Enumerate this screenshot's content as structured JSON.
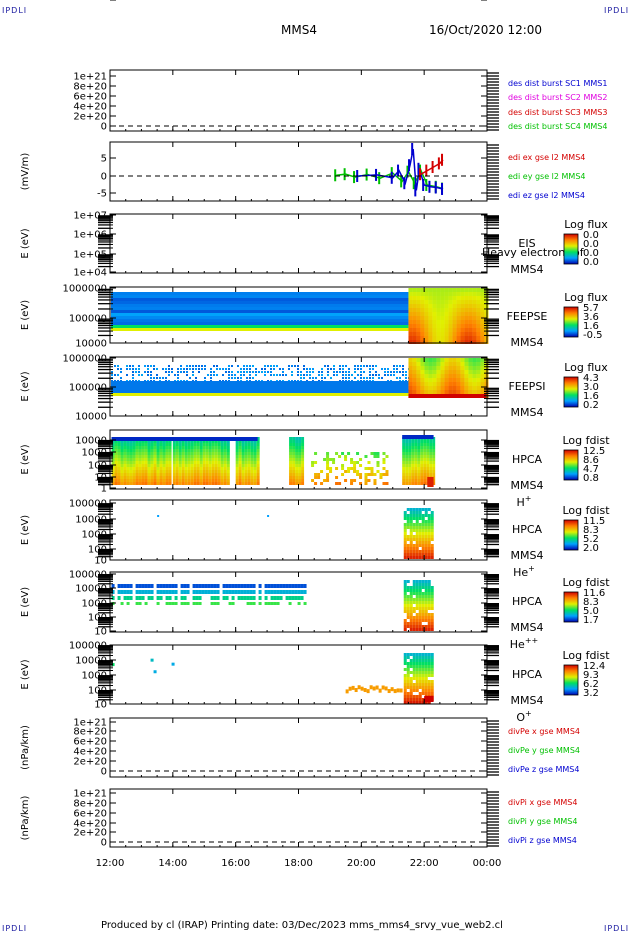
{
  "corners": {
    "tl": "IPDLI",
    "tr": "IPDLI",
    "bl": "IPDLI",
    "br": "IPDLI"
  },
  "header": {
    "spacecraft": "MMS4",
    "datetime": "16/Oct/2020 12:00"
  },
  "footer": {
    "text": "Produced by cl (IRAP)    Printing date: 03/Dec/2023    mms_mms4_srvy_vue_web2.cl"
  },
  "colors": {
    "red": "#d40000",
    "magenta": "#e000e0",
    "green": "#00c000",
    "blue": "#0000d0"
  },
  "time_axis": {
    "ticks": [
      "12:00",
      "14:00",
      "16:00",
      "18:00",
      "20:00",
      "22:00",
      "00:00"
    ],
    "range_hours": [
      12,
      24
    ]
  },
  "chart_data": [
    {
      "id": "des_dist",
      "type": "line",
      "ylabel": "",
      "yticks": [
        "1e+21",
        "8e+20",
        "6e+20",
        "4e+20",
        "2e+20",
        "0"
      ],
      "ylim": [
        0,
        1.1e+21
      ],
      "legend": [
        {
          "text": "des dist burst SC1 MMS1",
          "color": "#0000d0"
        },
        {
          "text": "des dist burst SC2 MMS2",
          "color": "#e000e0"
        },
        {
          "text": "des dist burst SC3 MMS3",
          "color": "#d40000"
        },
        {
          "text": "des dist burst SC4 MMS4",
          "color": "#00c000"
        }
      ],
      "series": []
    },
    {
      "id": "edi",
      "type": "line",
      "ylabel": "(mV/m)",
      "yticks": [
        "5",
        "0",
        "-5"
      ],
      "ylim": [
        -8,
        10
      ],
      "legend": [
        {
          "text": "edi ex gse l2 MMS4",
          "color": "#d40000"
        },
        {
          "text": "edi ey gse l2 MMS4",
          "color": "#00c000"
        },
        {
          "text": "edi ez gse l2 MMS4",
          "color": "#0000d0"
        }
      ],
      "series": [
        {
          "color": "#00c000",
          "x": [
            19.2,
            19.5,
            19.8,
            20.2,
            20.6,
            21.0,
            21.3,
            21.5,
            21.7,
            21.9,
            22.1,
            22.4,
            22.6
          ],
          "y": [
            0.2,
            0.5,
            -0.3,
            0.4,
            -0.6,
            0.8,
            -1.5,
            1.2,
            -2.0,
            1.5,
            -2.5,
            -3.0,
            -3.5
          ]
        },
        {
          "color": "#0000d0",
          "x": [
            19.9,
            20.5,
            21.0,
            21.2,
            21.4,
            21.55,
            21.65,
            21.75,
            21.85,
            22.0,
            22.2,
            22.4,
            22.6
          ],
          "y": [
            0,
            0.3,
            -0.5,
            1.5,
            -2.0,
            3.0,
            7.5,
            -4.0,
            2.0,
            -2.5,
            -3.0,
            -3.2,
            -3.6
          ]
        },
        {
          "color": "#d40000",
          "x": [
            21.9,
            22.1,
            22.3,
            22.5,
            22.6
          ],
          "y": [
            0.5,
            1.5,
            2.5,
            3.5,
            4.5
          ]
        }
      ]
    },
    {
      "id": "eis",
      "type": "heatmap",
      "ylabel": "E (eV)",
      "yticks": [
        "1e+07",
        "1e+06",
        "1e+05",
        "1e+04"
      ],
      "labels": [
        "EIS",
        "MMS4"
      ],
      "overlay": "Heavy electron tof",
      "colorbar": {
        "title": "Log flux",
        "ticks": [
          "0.0",
          "0.0",
          "0.0",
          "0.0"
        ]
      }
    },
    {
      "id": "feeps_e",
      "type": "heatmap",
      "ylabel": "E (eV)",
      "yticks": [
        "1000000",
        "100000",
        "10000"
      ],
      "labels": [
        "FEEPSE",
        "MMS4"
      ],
      "colorbar": {
        "title": "Log flux",
        "ticks": [
          "5.7",
          "3.6",
          "1.6",
          "-0.5"
        ]
      }
    },
    {
      "id": "feeps_i",
      "type": "heatmap",
      "ylabel": "E (eV)",
      "yticks": [
        "1000000",
        "100000",
        "10000"
      ],
      "labels": [
        "FEEPSI",
        "MMS4"
      ],
      "colorbar": {
        "title": "Log flux",
        "ticks": [
          "4.3",
          "3.0",
          "1.6",
          "0.2"
        ]
      }
    },
    {
      "id": "hpca_h",
      "type": "heatmap",
      "ylabel": "E (eV)",
      "yticks": [
        "10000",
        "1000",
        "100",
        "10",
        "1"
      ],
      "labels": [
        "HPCA",
        "MMS4"
      ],
      "species": "H",
      "charge": "+",
      "colorbar": {
        "title": "Log fdist",
        "ticks": [
          "12.5",
          "8.6",
          "4.7",
          "0.8"
        ]
      }
    },
    {
      "id": "hpca_he",
      "type": "heatmap",
      "ylabel": "E (eV)",
      "yticks": [
        "100000",
        "10000",
        "1000",
        "100",
        "10",
        "1"
      ],
      "labels": [
        "HPCA",
        "MMS4"
      ],
      "species": "He",
      "charge": "+",
      "colorbar": {
        "title": "Log fdist",
        "ticks": [
          "11.5",
          "8.3",
          "5.2",
          "2.0"
        ]
      }
    },
    {
      "id": "hpca_hepp",
      "type": "heatmap",
      "ylabel": "E (eV)",
      "yticks": [
        "100000",
        "10000",
        "1000",
        "100",
        "10",
        "1"
      ],
      "labels": [
        "HPCA",
        "MMS4"
      ],
      "species": "He",
      "charge": "++",
      "colorbar": {
        "title": "Log fdist",
        "ticks": [
          "11.6",
          "8.3",
          "5.0",
          "1.7"
        ]
      }
    },
    {
      "id": "hpca_o",
      "type": "heatmap",
      "ylabel": "E (eV)",
      "yticks": [
        "100000",
        "10000",
        "1000",
        "100",
        "10",
        "1"
      ],
      "labels": [
        "HPCA",
        "MMS4"
      ],
      "species": "O",
      "charge": "+",
      "colorbar": {
        "title": "Log fdist",
        "ticks": [
          "12.4",
          "9.3",
          "6.2",
          "3.2"
        ]
      }
    },
    {
      "id": "divpe",
      "type": "line",
      "ylabel": "(nPa/km)",
      "yticks": [
        "1e+21",
        "8e+20",
        "6e+20",
        "4e+20",
        "2e+20",
        "0"
      ],
      "ylim": [
        0,
        1.1e+21
      ],
      "legend": [
        {
          "text": "divPe x gse MMS4",
          "color": "#d40000"
        },
        {
          "text": "divPe y gse MMS4",
          "color": "#00c000"
        },
        {
          "text": "divPe z gse MMS4",
          "color": "#0000d0"
        }
      ],
      "series": []
    },
    {
      "id": "divpi",
      "type": "line",
      "ylabel": "(nPa/km)",
      "yticks": [
        "1e+21",
        "8e+20",
        "6e+20",
        "4e+20",
        "2e+20",
        "0"
      ],
      "ylim": [
        0,
        1.1e+21
      ],
      "legend": [
        {
          "text": "divPi x gse MMS4",
          "color": "#d40000"
        },
        {
          "text": "divPi y gse MMS4",
          "color": "#00c000"
        },
        {
          "text": "divPi z gse MMS4",
          "color": "#0000d0"
        }
      ],
      "series": []
    }
  ]
}
